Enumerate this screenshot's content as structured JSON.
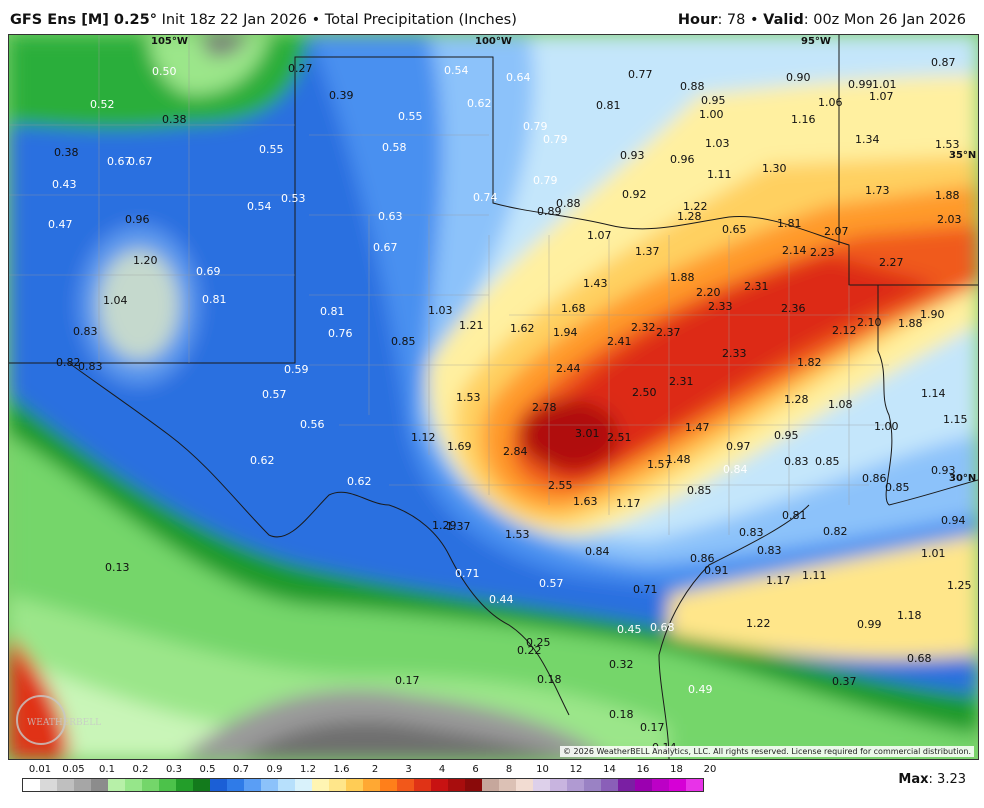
{
  "header": {
    "model": "GFS Ens [M] 0.25",
    "degree": "°",
    "init": "Init 18z 22 Jan 2026",
    "bullet": "•",
    "product": "Total Precipitation (Inches)",
    "hour_label": "Hour",
    "hour_value": ": 78",
    "valid_label": "Valid",
    "valid_value": ": 00z Mon 26 Jan 2026"
  },
  "map": {
    "longitude_labels": [
      "105°W",
      "100°W",
      "95°W"
    ],
    "latitude_labels": [
      "35°N",
      "30°N"
    ],
    "copyright": "© 2026 WeatherBELL Analytics, LLC. All rights reserved. License required for commercial distribution.",
    "logo": "WEATHERBELL",
    "values": [
      "0.50",
      "0.27",
      "0.52",
      "0.38",
      "0.39",
      "0.54",
      "0.64",
      "0.77",
      "0.88",
      "0.90",
      "0.99",
      "1.01",
      "0.87",
      "0.55",
      "0.62",
      "0.81",
      "0.95",
      "1.07",
      "1.06",
      "0.38",
      "0.67",
      "0.67",
      "0.55",
      "0.58",
      "0.79",
      "1.00",
      "1.16",
      "0.43",
      "0.53",
      "0.79",
      "0.93",
      "0.96",
      "1.03",
      "1.34",
      "1.53",
      "0.47",
      "0.96",
      "0.54",
      "0.74",
      "0.79",
      "1.11",
      "1.30",
      "1.73",
      "1.88",
      "0.63",
      "0.88",
      "0.89",
      "0.92",
      "1.22",
      "1.28",
      "0.65",
      "1.81",
      "2.07",
      "2.03",
      "1.20",
      "0.67",
      "1.07",
      "1.37",
      "2.14",
      "2.23",
      "2.27",
      "0.69",
      "1.04",
      "0.81",
      "1.43",
      "1.88",
      "2.20",
      "2.31",
      "0.83",
      "0.81",
      "1.03",
      "1.68",
      "2.33",
      "2.36",
      "1.90",
      "0.76",
      "1.21",
      "1.62",
      "1.94",
      "2.32",
      "2.37",
      "2.12",
      "2.10",
      "1.88",
      "0.82",
      "0.83",
      "0.85",
      "2.41",
      "2.33",
      "1.82",
      "0.59",
      "2.44",
      "1.14",
      "0.57",
      "1.53",
      "2.50",
      "2.31",
      "1.28",
      "1.08",
      "2.78",
      "1.15",
      "0.56",
      "1.47",
      "1.00",
      "1.12",
      "1.69",
      "3.01",
      "2.51",
      "0.97",
      "0.95",
      "0.62",
      "2.84",
      "1.57",
      "1.48",
      "0.83",
      "0.85",
      "0.84",
      "0.86",
      "0.93",
      "0.62",
      "2.55",
      "0.85",
      "0.85",
      "1.63",
      "1.17",
      "0.81",
      "1.29",
      "1.37",
      "0.82",
      "0.94",
      "1.53",
      "0.83",
      "0.13",
      "0.84",
      "0.83",
      "1.01",
      "0.86",
      "0.91",
      "0.71",
      "1.17",
      "1.11",
      "1.25",
      "0.57",
      "0.71",
      "0.44",
      "1.18",
      "1.22",
      "0.99",
      "0.45",
      "0.68",
      "0.25",
      "0.22",
      "0.68",
      "0.32",
      "0.17",
      "0.18",
      "0.49",
      "0.37",
      "0.18",
      "0.17",
      "0.14"
    ]
  },
  "colorbar": {
    "labels": [
      "0.01",
      "0.05",
      "0.1",
      "0.2",
      "0.3",
      "0.5",
      "0.7",
      "0.9",
      "1.2",
      "1.6",
      "2",
      "3",
      "4",
      "6",
      "8",
      "10",
      "12",
      "14",
      "16",
      "18",
      "20"
    ],
    "colors": [
      "#ffffff",
      "#d9d9d9",
      "#bfbfbf",
      "#a6a6a6",
      "#8c8c8c",
      "#b7f0a8",
      "#96e68a",
      "#74d66a",
      "#4cc24a",
      "#239e2a",
      "#137a1c",
      "#1b5fd6",
      "#2f7be8",
      "#5a9ef5",
      "#8cc2fa",
      "#b7e0fc",
      "#d9f2fb",
      "#fff5b3",
      "#ffe68a",
      "#ffcc55",
      "#ffa833",
      "#ff7f1a",
      "#f2581a",
      "#e03316",
      "#c81212",
      "#a80d0d",
      "#8a0a0a",
      "#c6a79c",
      "#dcc1b5",
      "#f2dcd2",
      "#ddd0ea",
      "#c8b4df",
      "#b09ad2",
      "#9a82c4",
      "#8a5fb8",
      "#7a1fa3",
      "#9b00b0",
      "#bc00c6",
      "#d600d6",
      "#e833e8"
    ],
    "max_label": "Max",
    "max_value": ": 3.23"
  }
}
